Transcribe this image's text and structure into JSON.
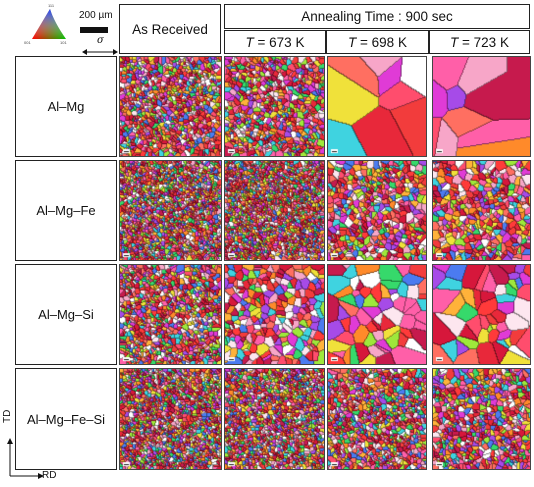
{
  "legend": {
    "orientation_labels": [
      "111",
      "001",
      "101"
    ],
    "scale_bar_label": "200 µm",
    "sigma_label": "σ"
  },
  "header": {
    "as_received": "As Received",
    "annealing_time": "Annealing Time : 900 sec",
    "temp_symbol": "T",
    "temps": [
      " = 673 K",
      " = 698 K",
      " = 723 K"
    ]
  },
  "rows": [
    {
      "label": "Al–Mg"
    },
    {
      "label": "Al–Mg–Fe"
    },
    {
      "label": "Al–Mg–Si"
    },
    {
      "label": "Al–Mg–Fe–Si"
    }
  ],
  "axes": {
    "td": "TD",
    "rd": "RD"
  },
  "palette": [
    "#e8283a",
    "#f23c3c",
    "#ff4d6d",
    "#d6173b",
    "#ff6f61",
    "#f7a6c8",
    "#ff5fa8",
    "#e03bd6",
    "#a64be8",
    "#4b7bf0",
    "#3fd3e0",
    "#36d96b",
    "#9ee83b",
    "#f0e13a",
    "#ffb23a",
    "#ff8a2a",
    "#c61a4d",
    "#ff3a3a",
    "#fde6ef",
    "#ffffff"
  ]
}
